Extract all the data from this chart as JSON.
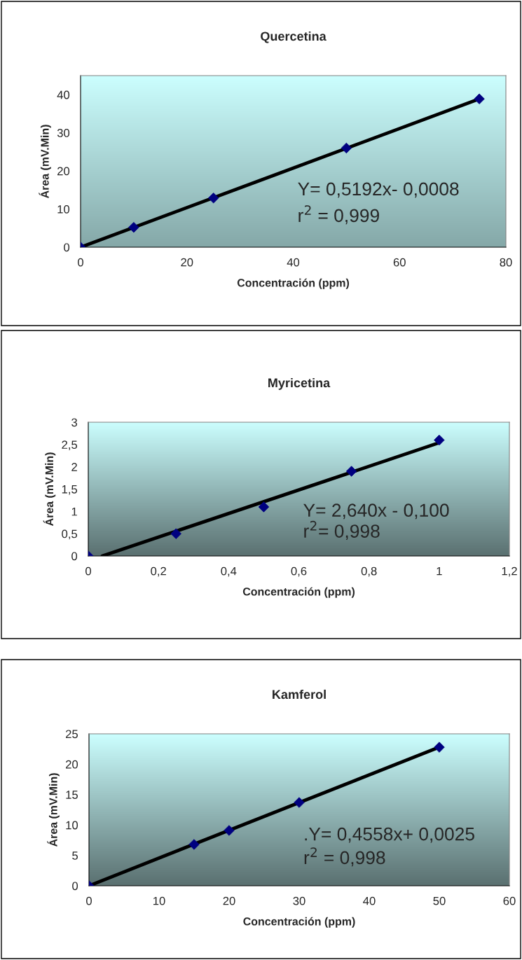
{
  "chart_data": [
    {
      "type": "scatter",
      "title": "Quercetina",
      "xlabel": "Concentración (ppm)",
      "ylabel": "Área (mV.Min)",
      "xlim": [
        0,
        80
      ],
      "ylim": [
        0,
        45
      ],
      "xticks": [
        0,
        20,
        40,
        60,
        80
      ],
      "yticks": [
        0,
        10,
        20,
        30,
        40
      ],
      "grid": false,
      "legend": false,
      "marker": "diamond",
      "series": [
        {
          "color": "#000080",
          "x": [
            0,
            10,
            25,
            50,
            75
          ],
          "values": [
            0,
            5.2,
            12.9,
            26,
            38.9
          ]
        },
        {
          "type": "line",
          "color": "#000000",
          "marker": "none",
          "line_style": "solid",
          "x": [
            0,
            75
          ],
          "values": [
            0,
            38.9
          ]
        }
      ],
      "annotations": [
        "Y= 0,5192x- 0,0008",
        "r$^{2}$ = 0,999"
      ]
    },
    {
      "type": "scatter",
      "title": "Myricetina",
      "xlabel": "Concentración (ppm)",
      "ylabel": "Área (mV.Min)",
      "xlim": [
        0,
        1.2
      ],
      "ylim": [
        0,
        3
      ],
      "xticks": [
        0,
        {
          "value": 0.2,
          "label": "0,2"
        },
        {
          "value": 0.4,
          "label": "0,4"
        },
        {
          "value": 0.6,
          "label": "0,6"
        },
        {
          "value": 0.8,
          "label": "0,8"
        },
        1,
        {
          "value": 1.2,
          "label": "1,2"
        }
      ],
      "yticks": [
        0,
        {
          "value": 0.5,
          "label": "0,5"
        },
        1,
        {
          "value": 1.5,
          "label": "1,5"
        },
        2,
        {
          "value": 2.5,
          "label": "2,5"
        },
        3
      ],
      "grid": false,
      "legend": false,
      "marker": "diamond",
      "series": [
        {
          "color": "#000080",
          "x": [
            0,
            0.25,
            0.5,
            0.75,
            1
          ],
          "values": [
            0,
            0.5,
            1.1,
            1.9,
            2.6
          ]
        },
        {
          "type": "line",
          "color": "#000000",
          "marker": "none",
          "line_style": "solid",
          "x": [
            0.04,
            1
          ],
          "values": [
            0,
            2.54
          ]
        }
      ],
      "annotations": [
        "Y= 2,640x - 0,100",
        "r$^{2}$= 0,998"
      ]
    },
    {
      "type": "scatter",
      "title": "Kamferol",
      "xlabel": "Concentración (ppm)",
      "ylabel": "Área (mV.Min)",
      "xlim": [
        0,
        60
      ],
      "ylim": [
        0,
        25
      ],
      "xticks": [
        0,
        10,
        20,
        30,
        40,
        50,
        60
      ],
      "yticks": [
        0,
        5,
        10,
        15,
        20,
        25
      ],
      "grid": false,
      "legend": false,
      "marker": "diamond",
      "series": [
        {
          "color": "#000080",
          "x": [
            0,
            15,
            20,
            30,
            50
          ],
          "values": [
            0,
            6.8,
            9.1,
            13.7,
            22.8
          ]
        },
        {
          "type": "line",
          "color": "#000000",
          "marker": "none",
          "line_style": "solid",
          "x": [
            0,
            50
          ],
          "values": [
            0,
            22.8
          ]
        }
      ],
      "annotations": [
        ".Y= 0,4558x+ 0,0025",
        "r$^{2}$ = 0,998"
      ]
    }
  ]
}
